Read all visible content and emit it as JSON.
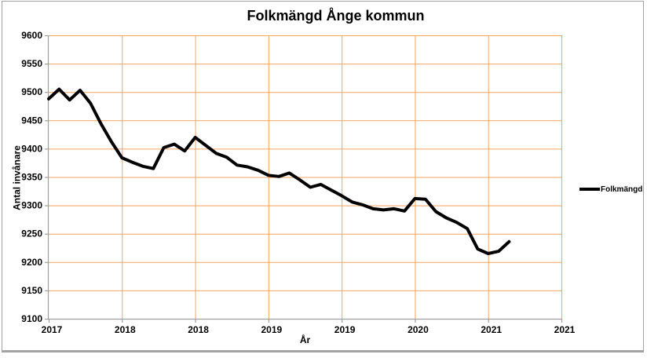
{
  "title": "Folkmängd Ånge kommun",
  "y_axis": {
    "title": "Antal invånare",
    "tick_labels": [
      "9600",
      "9550",
      "9500",
      "9450",
      "9400",
      "9350",
      "9300",
      "9250",
      "9200",
      "9150",
      "9100"
    ]
  },
  "x_axis": {
    "title": "År",
    "tick_labels": [
      "2017",
      "2018",
      "2018",
      "2019",
      "2019",
      "2020",
      "2021",
      "2021"
    ]
  },
  "legend": {
    "label": "Folkmängd"
  },
  "colors": {
    "gridline": "#F2A45C",
    "axis": "#9E9E9E",
    "series": "#000000",
    "text": "#000000",
    "frame_border": "#A2A2A2",
    "background": "#FFFFFF"
  },
  "chart_data": {
    "type": "line",
    "title": "Folkmängd Ånge kommun",
    "xlabel": "År",
    "ylabel": "Antal invånare",
    "ylim": [
      9100,
      9600
    ],
    "y_tick_step": 50,
    "grid": true,
    "legend_position": "right",
    "x_tick_labels": [
      "2017",
      "2018",
      "2018",
      "2019",
      "2019",
      "2020",
      "2021",
      "2021"
    ],
    "x_label_interval": 7,
    "series": [
      {
        "name": "Folkmängd",
        "color": "#000000",
        "values": [
          9488,
          9505,
          9486,
          9503,
          9480,
          9444,
          9412,
          9384,
          9376,
          9369,
          9365,
          9402,
          9408,
          9396,
          9420,
          9406,
          9392,
          9385,
          9371,
          9368,
          9362,
          9353,
          9351,
          9357,
          9345,
          9332,
          9337,
          9327,
          9317,
          9306,
          9301,
          9294,
          9292,
          9294,
          9290,
          9312,
          9311,
          9289,
          9278,
          9270,
          9259,
          9223,
          9215,
          9219,
          9236
        ]
      }
    ]
  }
}
